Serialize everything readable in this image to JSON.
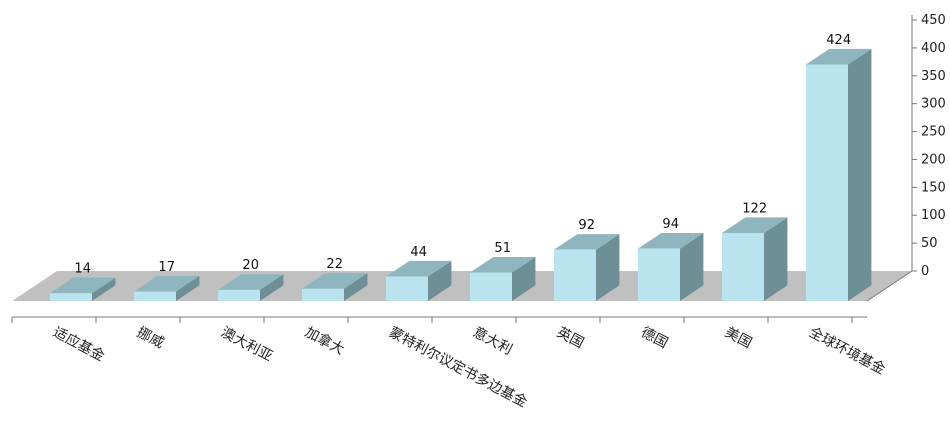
{
  "chart_data": {
    "type": "bar",
    "categories": [
      "适应基金",
      "挪威",
      "澳大利亚",
      "加拿大",
      "蒙特利尔议定书多边基金",
      "意大利",
      "英国",
      "德国",
      "美国",
      "全球环境基金"
    ],
    "values": [
      14,
      17,
      20,
      22,
      44,
      51,
      92,
      94,
      122,
      424
    ],
    "data_labels": [
      "14",
      "17",
      "20",
      "22",
      "44",
      "51",
      "92",
      "94",
      "122",
      "424"
    ],
    "ylim": [
      0,
      450
    ],
    "yticks": [
      "0",
      "50",
      "100",
      "150",
      "200",
      "250",
      "300",
      "350",
      "400",
      "450"
    ],
    "y_axis_position": "right",
    "grid": false,
    "legend": "none",
    "style": "3d-column",
    "colors": {
      "bar_front": "#b9e3ee",
      "bar_top": "#8fb6be",
      "bar_side": "#6f8f96",
      "floor": "#c0c0c0",
      "axis": "#777777"
    }
  }
}
